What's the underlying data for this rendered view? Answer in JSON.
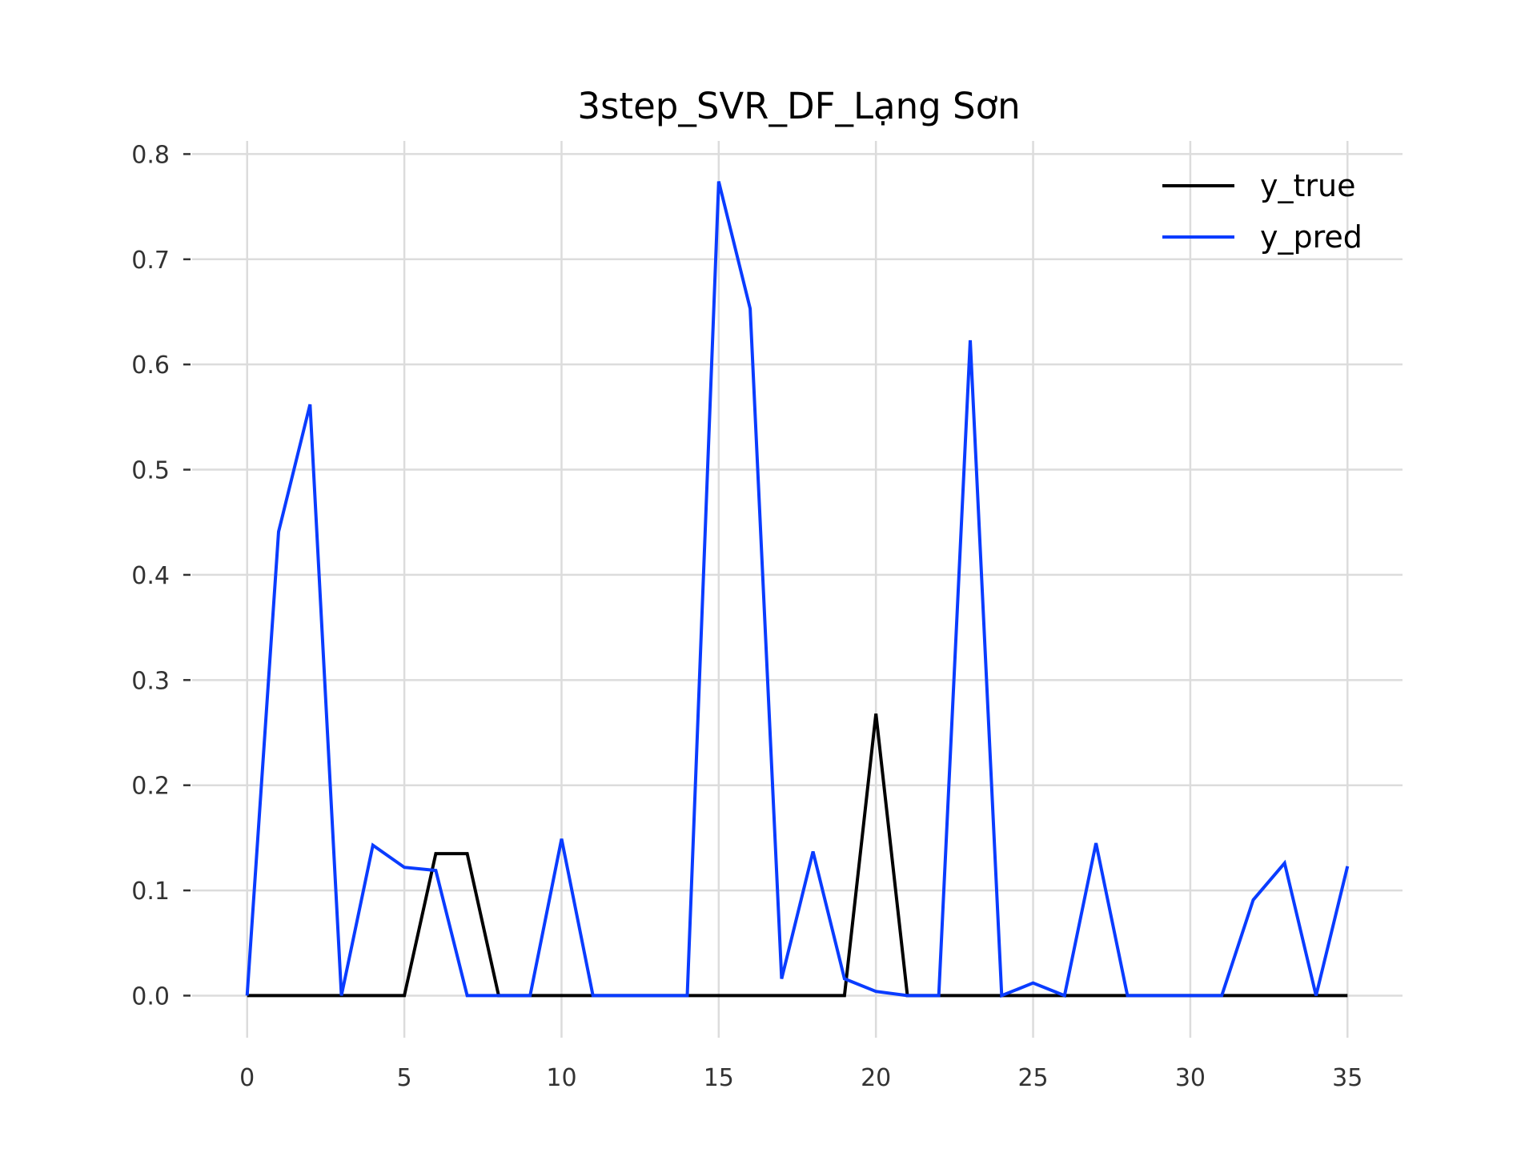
{
  "chart_data": {
    "type": "line",
    "title": "3step_SVR_DF_Lạng Sơn",
    "xlabel": "",
    "ylabel": "",
    "xlim": [
      -1.75,
      36.75
    ],
    "ylim": [
      -0.04,
      0.8125
    ],
    "x_ticks": [
      0,
      5,
      10,
      15,
      20,
      25,
      30,
      35
    ],
    "y_ticks": [
      0.0,
      0.1,
      0.2,
      0.3,
      0.4,
      0.5,
      0.6,
      0.7,
      0.8
    ],
    "grid": true,
    "legend_position": "top-right",
    "x": [
      0,
      1,
      2,
      3,
      4,
      5,
      6,
      7,
      8,
      9,
      10,
      11,
      12,
      13,
      14,
      15,
      16,
      17,
      18,
      19,
      20,
      21,
      22,
      23,
      24,
      25,
      26,
      27,
      28,
      29,
      30,
      31,
      32,
      33,
      34,
      35
    ],
    "series": [
      {
        "name": "y_true",
        "color": "#000000",
        "values": [
          0,
          0,
          0,
          0,
          0,
          0,
          0.135,
          0.135,
          0,
          0,
          0,
          0,
          0,
          0,
          0,
          0,
          0,
          0,
          0,
          0,
          0.268,
          0,
          0,
          0,
          0,
          0,
          0,
          0,
          0,
          0,
          0,
          0,
          0,
          0,
          0,
          0
        ]
      },
      {
        "name": "y_pred",
        "color": "#0a3cff",
        "values": [
          0,
          0.441,
          0.562,
          0,
          0.143,
          0.122,
          0.119,
          0,
          0,
          0,
          0.149,
          0,
          0,
          0,
          0,
          0.774,
          0.653,
          0.016,
          0.137,
          0.016,
          0.004,
          0,
          0,
          0.623,
          0,
          0.012,
          0,
          0.145,
          0,
          0,
          0,
          0,
          0.091,
          0.126,
          0,
          0.123
        ]
      }
    ]
  }
}
